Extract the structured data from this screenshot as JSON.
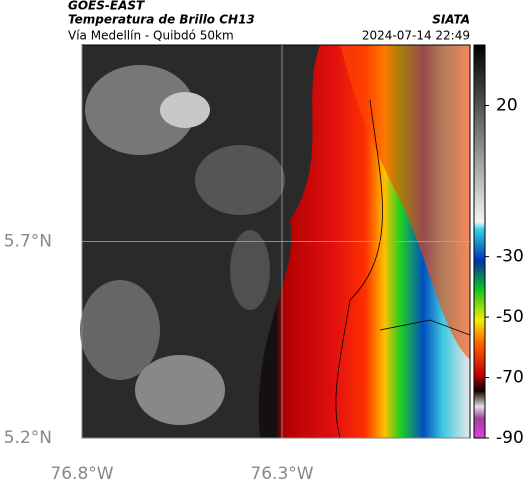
{
  "header": {
    "source": "GOES-EAST",
    "title": "Temperatura de Brillo CH13",
    "subtitle": "Vía Medellín - Quibdó 50km",
    "brand": "SIATA",
    "timestamp": "2024-07-14 22:49"
  },
  "map": {
    "xlim": [
      -76.8,
      -75.83
    ],
    "ylim": [
      5.2,
      6.2
    ],
    "xticks": [
      {
        "value": -76.8,
        "label": "76.8°W"
      },
      {
        "value": -76.3,
        "label": "76.3°W"
      }
    ],
    "yticks": [
      {
        "value": 5.2,
        "label": "5.2°N"
      },
      {
        "value": 5.7,
        "label": "5.7°N"
      }
    ],
    "grid": true
  },
  "colorbar": {
    "clim": [
      40,
      -90
    ],
    "ticks": [
      20,
      -30,
      -50,
      -70,
      -90
    ]
  }
}
